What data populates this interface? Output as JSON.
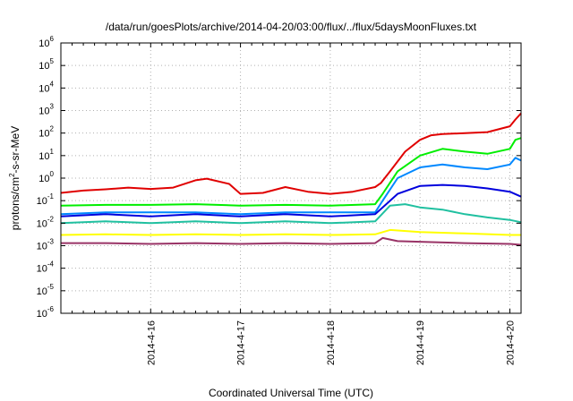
{
  "chart_data": {
    "type": "line",
    "title": "/data/run/goesPlots/archive/2014-04-20/03:00/flux/../flux/5daysMoonFluxes.txt",
    "xlabel": "Coordinated Universal Time (UTC)",
    "ylabel": {
      "prefix": "protons/cm",
      "exponent": "2",
      "suffix": "-s-sr-MeV"
    },
    "y_scale": "log",
    "ylim_exponents": [
      -6,
      6
    ],
    "y_tick_base": "10",
    "y_tick_exponents": [
      "-6",
      "-5",
      "-4",
      "-3",
      "-2",
      "-1",
      "0",
      "1",
      "2",
      "3",
      "4",
      "5",
      "6"
    ],
    "x_range_days": [
      "2014-04-15",
      "2014-04-20T03:00"
    ],
    "x_ticks": [
      "2014-4-16",
      "2014-4-17",
      "2014-4-18",
      "2014-4-19",
      "2014-4-20"
    ],
    "grid": true,
    "legend": "none",
    "series": [
      {
        "color": "#e00000",
        "points": [
          [
            "2014-04-15T00:00",
            0.22
          ],
          [
            "2014-04-15T06:00",
            0.28
          ],
          [
            "2014-04-15T12:00",
            0.32
          ],
          [
            "2014-04-15T18:00",
            0.38
          ],
          [
            "2014-04-16T00:00",
            0.33
          ],
          [
            "2014-04-16T06:00",
            0.38
          ],
          [
            "2014-04-16T12:00",
            0.8
          ],
          [
            "2014-04-16T15:00",
            0.95
          ],
          [
            "2014-04-16T21:00",
            0.55
          ],
          [
            "2014-04-17T00:00",
            0.2
          ],
          [
            "2014-04-17T06:00",
            0.22
          ],
          [
            "2014-04-17T12:00",
            0.4
          ],
          [
            "2014-04-17T18:00",
            0.25
          ],
          [
            "2014-04-18T00:00",
            0.2
          ],
          [
            "2014-04-18T06:00",
            0.25
          ],
          [
            "2014-04-18T12:00",
            0.4
          ],
          [
            "2014-04-18T13:30",
            0.6
          ],
          [
            "2014-04-18T16:00",
            2
          ],
          [
            "2014-04-18T20:00",
            15
          ],
          [
            "2014-04-19T00:00",
            50
          ],
          [
            "2014-04-19T03:00",
            80
          ],
          [
            "2014-04-19T06:00",
            90
          ],
          [
            "2014-04-19T12:00",
            100
          ],
          [
            "2014-04-19T18:00",
            110
          ],
          [
            "2014-04-20T00:00",
            200
          ],
          [
            "2014-04-20T01:30",
            400
          ],
          [
            "2014-04-20T03:00",
            750
          ]
        ]
      },
      {
        "color": "#00ee00",
        "points": [
          [
            "2014-04-15T00:00",
            0.06
          ],
          [
            "2014-04-15T12:00",
            0.065
          ],
          [
            "2014-04-16T00:00",
            0.065
          ],
          [
            "2014-04-16T12:00",
            0.07
          ],
          [
            "2014-04-17T00:00",
            0.06
          ],
          [
            "2014-04-17T12:00",
            0.065
          ],
          [
            "2014-04-18T00:00",
            0.06
          ],
          [
            "2014-04-18T12:00",
            0.07
          ],
          [
            "2014-04-18T14:00",
            0.2
          ],
          [
            "2014-04-18T18:00",
            2
          ],
          [
            "2014-04-19T00:00",
            10
          ],
          [
            "2014-04-19T06:00",
            20
          ],
          [
            "2014-04-19T12:00",
            15
          ],
          [
            "2014-04-19T18:00",
            12
          ],
          [
            "2014-04-20T00:00",
            20
          ],
          [
            "2014-04-20T01:30",
            50
          ],
          [
            "2014-04-20T03:00",
            60
          ]
        ]
      },
      {
        "color": "#0088ff",
        "points": [
          [
            "2014-04-15T00:00",
            0.025
          ],
          [
            "2014-04-15T12:00",
            0.03
          ],
          [
            "2014-04-16T00:00",
            0.03
          ],
          [
            "2014-04-16T12:00",
            0.03
          ],
          [
            "2014-04-17T00:00",
            0.025
          ],
          [
            "2014-04-17T12:00",
            0.03
          ],
          [
            "2014-04-18T00:00",
            0.03
          ],
          [
            "2014-04-18T12:00",
            0.03
          ],
          [
            "2014-04-18T14:00",
            0.1
          ],
          [
            "2014-04-18T18:00",
            1
          ],
          [
            "2014-04-19T00:00",
            3
          ],
          [
            "2014-04-19T06:00",
            4
          ],
          [
            "2014-04-19T12:00",
            3
          ],
          [
            "2014-04-19T18:00",
            2.5
          ],
          [
            "2014-04-20T00:00",
            4
          ],
          [
            "2014-04-20T01:30",
            8
          ],
          [
            "2014-04-20T03:00",
            6
          ]
        ]
      },
      {
        "color": "#0000dd",
        "points": [
          [
            "2014-04-15T00:00",
            0.02
          ],
          [
            "2014-04-15T12:00",
            0.025
          ],
          [
            "2014-04-16T00:00",
            0.02
          ],
          [
            "2014-04-16T12:00",
            0.025
          ],
          [
            "2014-04-17T00:00",
            0.02
          ],
          [
            "2014-04-17T12:00",
            0.025
          ],
          [
            "2014-04-18T00:00",
            0.02
          ],
          [
            "2014-04-18T12:00",
            0.025
          ],
          [
            "2014-04-18T14:00",
            0.05
          ],
          [
            "2014-04-18T18:00",
            0.2
          ],
          [
            "2014-04-19T00:00",
            0.45
          ],
          [
            "2014-04-19T06:00",
            0.5
          ],
          [
            "2014-04-19T12:00",
            0.45
          ],
          [
            "2014-04-19T18:00",
            0.35
          ],
          [
            "2014-04-20T00:00",
            0.25
          ],
          [
            "2014-04-20T03:00",
            0.15
          ]
        ]
      },
      {
        "color": "#20c0a0",
        "points": [
          [
            "2014-04-15T00:00",
            0.01
          ],
          [
            "2014-04-15T12:00",
            0.012
          ],
          [
            "2014-04-16T00:00",
            0.01
          ],
          [
            "2014-04-16T12:00",
            0.012
          ],
          [
            "2014-04-17T00:00",
            0.01
          ],
          [
            "2014-04-17T12:00",
            0.012
          ],
          [
            "2014-04-18T00:00",
            0.01
          ],
          [
            "2014-04-18T12:00",
            0.012
          ],
          [
            "2014-04-18T16:00",
            0.06
          ],
          [
            "2014-04-18T20:00",
            0.07
          ],
          [
            "2014-04-19T00:00",
            0.05
          ],
          [
            "2014-04-19T06:00",
            0.04
          ],
          [
            "2014-04-19T12:00",
            0.025
          ],
          [
            "2014-04-19T18:00",
            0.018
          ],
          [
            "2014-04-20T00:00",
            0.014
          ],
          [
            "2014-04-20T03:00",
            0.011
          ]
        ]
      },
      {
        "color": "#ffff00",
        "points": [
          [
            "2014-04-15T00:00",
            0.003
          ],
          [
            "2014-04-15T12:00",
            0.0032
          ],
          [
            "2014-04-16T00:00",
            0.003
          ],
          [
            "2014-04-16T12:00",
            0.0032
          ],
          [
            "2014-04-17T00:00",
            0.003
          ],
          [
            "2014-04-17T12:00",
            0.0032
          ],
          [
            "2014-04-18T00:00",
            0.003
          ],
          [
            "2014-04-18T12:00",
            0.0032
          ],
          [
            "2014-04-18T16:00",
            0.005
          ],
          [
            "2014-04-19T00:00",
            0.004
          ],
          [
            "2014-04-19T12:00",
            0.0035
          ],
          [
            "2014-04-20T00:00",
            0.003
          ],
          [
            "2014-04-20T03:00",
            0.003
          ]
        ]
      },
      {
        "color": "#993366",
        "points": [
          [
            "2014-04-15T00:00",
            0.0013
          ],
          [
            "2014-04-15T12:00",
            0.0013
          ],
          [
            "2014-04-16T00:00",
            0.0012
          ],
          [
            "2014-04-16T12:00",
            0.0013
          ],
          [
            "2014-04-17T00:00",
            0.0012
          ],
          [
            "2014-04-17T12:00",
            0.0013
          ],
          [
            "2014-04-18T00:00",
            0.0012
          ],
          [
            "2014-04-18T12:00",
            0.0013
          ],
          [
            "2014-04-18T14:00",
            0.0022
          ],
          [
            "2014-04-18T18:00",
            0.0016
          ],
          [
            "2014-04-19T00:00",
            0.0015
          ],
          [
            "2014-04-19T12:00",
            0.0013
          ],
          [
            "2014-04-20T00:00",
            0.0012
          ],
          [
            "2014-04-20T03:00",
            0.0011
          ]
        ]
      }
    ]
  }
}
